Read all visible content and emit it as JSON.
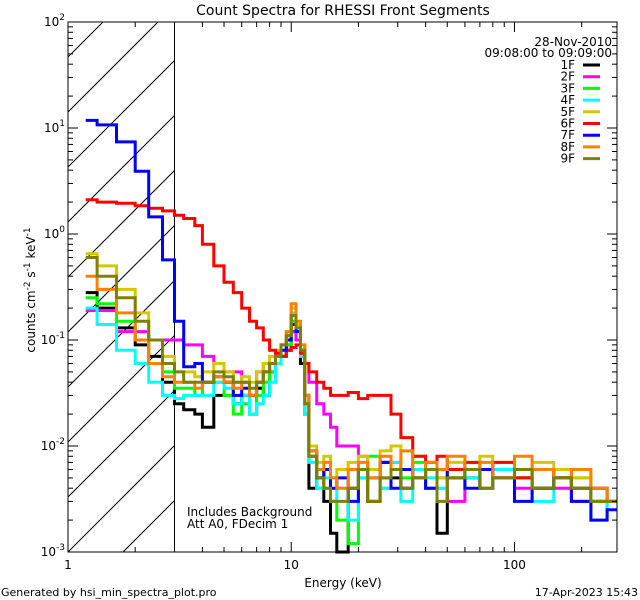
{
  "chart_data": {
    "type": "line",
    "title": "Count Spectra for RHESSI Front Segments",
    "xlabel": "Energy (keV)",
    "ylabel": "counts cm-2 s-1 keV-1",
    "xscale": "log",
    "yscale": "log",
    "xlim": [
      1,
      288
    ],
    "ylim": [
      0.001,
      100
    ],
    "x_tick_labels": [
      "1",
      "10",
      "100"
    ],
    "x_tick_values": [
      1,
      10,
      100
    ],
    "y_tick_values": [
      0.001,
      0.01,
      0.1,
      1,
      10,
      100
    ],
    "y_tick_labels": [
      {
        "base": "10",
        "exp": "-3"
      },
      {
        "base": "10",
        "exp": "-2"
      },
      {
        "base": "10",
        "exp": "-1"
      },
      {
        "base": "10",
        "exp": "0"
      },
      {
        "base": "10",
        "exp": "1"
      },
      {
        "base": "10",
        "exp": "2"
      }
    ],
    "hatched_region_keV": [
      1,
      3
    ],
    "date": "28-Nov-2010",
    "time_range": "09:08:00 to 09:09:00",
    "annotations": [
      "Includes Background",
      "Att A0, FDecim 1"
    ],
    "legend_placement": "top-right",
    "energy_edges": [
      1.2,
      1.35,
      1.65,
      2.0,
      2.3,
      2.65,
      3.0,
      3.3,
      3.7,
      4.0,
      4.5,
      5.0,
      5.5,
      6.0,
      6.5,
      7.0,
      7.5,
      8.0,
      8.5,
      9.0,
      9.5,
      10,
      10.5,
      11,
      11.5,
      12,
      13,
      14,
      15,
      16,
      18,
      20,
      22,
      25,
      28,
      31,
      35,
      40,
      45,
      50,
      60,
      70,
      80,
      100,
      120,
      150,
      180,
      220,
      260,
      300
    ],
    "series": [
      {
        "name": "1F",
        "color": "#000000",
        "values": [
          0.28,
          0.2,
          0.13,
          0.09,
          0.07,
          0.04,
          0.025,
          0.022,
          0.02,
          0.015,
          0.03,
          0.04,
          0.025,
          0.03,
          0.02,
          0.035,
          0.03,
          0.05,
          0.06,
          0.07,
          0.08,
          0.12,
          0.1,
          0.06,
          0.02,
          0.004,
          0.006,
          0.003,
          0.0015,
          0.0008,
          0.004,
          0.006,
          0.003,
          0.007,
          0.005,
          0.004,
          0.005,
          0.006,
          0.0015,
          0.006,
          0.005,
          0.004,
          0.006,
          0.005,
          0.004,
          0.005,
          0.004,
          0.003,
          0.003
        ]
      },
      {
        "name": "2F",
        "color": "#ff00ff",
        "values": [
          0.19,
          0.19,
          0.12,
          0.12,
          0.1,
          0.1,
          0.1,
          0.09,
          0.09,
          0.07,
          0.06,
          0.05,
          0.05,
          0.04,
          0.03,
          0.05,
          0.06,
          0.06,
          0.07,
          0.07,
          0.09,
          0.12,
          0.1,
          0.07,
          0.06,
          0.04,
          0.025,
          0.02,
          0.015,
          0.01,
          0.01,
          0.008,
          0.006,
          0.005,
          0.007,
          0.004,
          0.006,
          0.004,
          0.005,
          0.003,
          0.006,
          0.004,
          0.005,
          0.004,
          0.006,
          0.004,
          0.003,
          0.004,
          0.003
        ]
      },
      {
        "name": "3F",
        "color": "#00ff00",
        "values": [
          0.25,
          0.22,
          0.15,
          0.1,
          0.06,
          0.05,
          0.035,
          0.035,
          0.03,
          0.04,
          0.04,
          0.03,
          0.02,
          0.025,
          0.02,
          0.03,
          0.04,
          0.05,
          0.06,
          0.07,
          0.09,
          0.15,
          0.12,
          0.08,
          0.03,
          0.008,
          0.005,
          0.004,
          0.003,
          0.002,
          0.0012,
          0.005,
          0.008,
          0.004,
          0.006,
          0.005,
          0.007,
          0.004,
          0.006,
          0.005,
          0.007,
          0.004,
          0.006,
          0.005,
          0.004,
          0.006,
          0.005,
          0.003,
          0.003
        ]
      },
      {
        "name": "4F",
        "color": "#00ffff",
        "values": [
          0.2,
          0.14,
          0.08,
          0.06,
          0.04,
          0.03,
          0.028,
          0.03,
          0.03,
          0.03,
          0.04,
          0.035,
          0.025,
          0.03,
          0.02,
          0.025,
          0.03,
          0.04,
          0.06,
          0.08,
          0.1,
          0.18,
          0.13,
          0.07,
          0.02,
          0.007,
          0.004,
          0.005,
          0.003,
          0.004,
          0.002,
          0.005,
          0.006,
          0.004,
          0.007,
          0.003,
          0.006,
          0.005,
          0.004,
          0.006,
          0.005,
          0.004,
          0.006,
          0.005,
          0.003,
          0.005,
          0.004,
          0.002,
          0.003
        ]
      },
      {
        "name": "5F",
        "color": "#d2c800",
        "values": [
          0.65,
          0.5,
          0.3,
          0.18,
          0.1,
          0.07,
          0.05,
          0.05,
          0.045,
          0.05,
          0.06,
          0.05,
          0.04,
          0.045,
          0.04,
          0.05,
          0.06,
          0.07,
          0.08,
          0.09,
          0.12,
          0.2,
          0.14,
          0.09,
          0.03,
          0.01,
          0.007,
          0.008,
          0.005,
          0.006,
          0.007,
          0.008,
          0.006,
          0.009,
          0.01,
          0.006,
          0.008,
          0.007,
          0.005,
          0.007,
          0.006,
          0.008,
          0.007,
          0.005,
          0.007,
          0.006,
          0.005,
          0.004,
          0.003
        ]
      },
      {
        "name": "6F",
        "color": "#ff0000",
        "values": [
          2.1,
          2.0,
          1.95,
          1.85,
          1.75,
          1.65,
          1.5,
          1.4,
          1.2,
          0.8,
          0.5,
          0.35,
          0.28,
          0.2,
          0.15,
          0.13,
          0.1,
          0.08,
          0.075,
          0.07,
          0.08,
          0.085,
          0.09,
          0.075,
          0.06,
          0.05,
          0.04,
          0.035,
          0.03,
          0.03,
          0.032,
          0.028,
          0.03,
          0.03,
          0.02,
          0.012,
          0.008,
          0.007,
          0.008,
          0.006,
          0.007,
          0.006,
          0.007,
          0.005,
          0.006,
          0.005,
          0.004,
          0.004,
          0.003
        ]
      },
      {
        "name": "7F",
        "color": "#0000ff",
        "values": [
          11.8,
          10.7,
          7.4,
          3.9,
          1.45,
          0.57,
          0.15,
          0.056,
          0.06,
          0.04,
          0.045,
          0.04,
          0.03,
          0.035,
          0.03,
          0.04,
          0.05,
          0.06,
          0.07,
          0.08,
          0.1,
          0.14,
          0.12,
          0.08,
          0.03,
          0.009,
          0.005,
          0.006,
          0.004,
          0.005,
          0.003,
          0.006,
          0.005,
          0.007,
          0.004,
          0.006,
          0.005,
          0.004,
          0.006,
          0.005,
          0.004,
          0.006,
          0.005,
          0.003,
          0.004,
          0.005,
          0.003,
          0.002,
          0.0025
        ]
      },
      {
        "name": "8F",
        "color": "#ff8000",
        "values": [
          0.4,
          0.3,
          0.18,
          0.1,
          0.06,
          0.045,
          0.04,
          0.04,
          0.035,
          0.04,
          0.045,
          0.04,
          0.035,
          0.04,
          0.03,
          0.04,
          0.05,
          0.06,
          0.07,
          0.09,
          0.12,
          0.22,
          0.15,
          0.09,
          0.03,
          0.009,
          0.006,
          0.007,
          0.005,
          0.004,
          0.006,
          0.007,
          0.005,
          0.008,
          0.006,
          0.009,
          0.005,
          0.007,
          0.006,
          0.008,
          0.006,
          0.007,
          0.005,
          0.008,
          0.006,
          0.005,
          0.006,
          0.004,
          0.003
        ]
      },
      {
        "name": "9F",
        "color": "#808000",
        "values": [
          0.6,
          0.4,
          0.25,
          0.15,
          0.1,
          0.06,
          0.05,
          0.04,
          0.04,
          0.04,
          0.05,
          0.045,
          0.04,
          0.04,
          0.035,
          0.04,
          0.05,
          0.06,
          0.07,
          0.09,
          0.11,
          0.17,
          0.13,
          0.08,
          0.025,
          0.008,
          0.005,
          0.004,
          0.003,
          0.003,
          0.004,
          0.006,
          0.003,
          0.005,
          0.006,
          0.004,
          0.005,
          0.006,
          0.003,
          0.005,
          0.006,
          0.004,
          0.005,
          0.006,
          0.004,
          0.005,
          0.004,
          0.003,
          0.003
        ]
      }
    ]
  },
  "footer": {
    "generated_by": "Generated by hsi_min_spectra_plot.pro",
    "timestamp": "17-Apr-2023 15:43"
  }
}
